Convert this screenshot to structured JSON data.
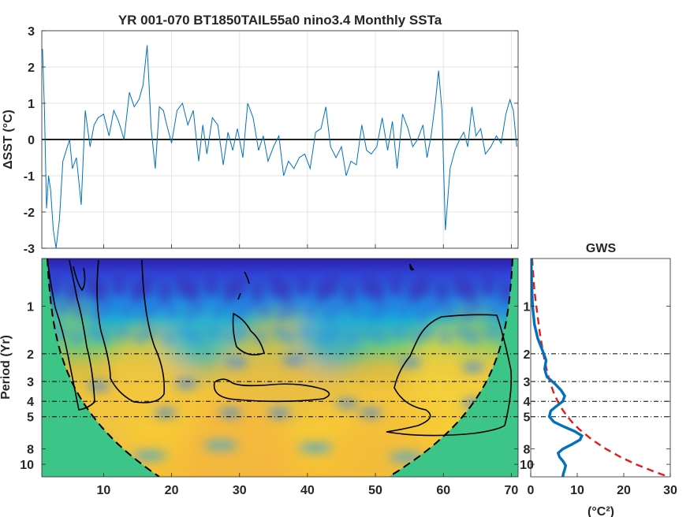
{
  "title": "YR 001-070 BT1850TAIL55a0 nino3.4 Monthly SSTa",
  "chart_data": [
    {
      "type": "line",
      "title": "YR 001-070 BT1850TAIL55a0 nino3.4 Monthly SSTa",
      "xlabel": "",
      "ylabel": "ΔSST (°C)",
      "xlim": [
        0.9,
        71
      ],
      "ylim": [
        -3,
        3
      ],
      "yticks": [
        -3,
        -2,
        -1,
        0,
        1,
        2,
        3
      ],
      "grid": true,
      "line_color": "#0072bd",
      "zero_line_color": "#000000",
      "x": [
        1.0,
        1.3,
        1.6,
        1.9,
        2.2,
        2.6,
        3.0,
        3.5,
        4.0,
        4.5,
        5.0,
        5.4,
        6.0,
        6.7,
        7.3,
        8.0,
        8.6,
        9.2,
        10.0,
        10.8,
        11.5,
        12.2,
        13.0,
        13.8,
        14.5,
        15.2,
        15.8,
        16.4,
        17.0,
        17.6,
        18.2,
        18.8,
        19.3,
        20.0,
        20.8,
        21.6,
        22.4,
        23.2,
        24.0,
        24.6,
        25.2,
        26.0,
        26.8,
        27.6,
        28.3,
        29.0,
        29.7,
        30.5,
        31.2,
        32.0,
        32.8,
        33.5,
        34.2,
        35.0,
        35.8,
        36.5,
        37.2,
        38.0,
        38.8,
        39.6,
        40.4,
        41.2,
        42.0,
        42.7,
        43.4,
        44.2,
        45.0,
        45.7,
        46.4,
        47.2,
        48.0,
        48.7,
        49.4,
        50.2,
        51.0,
        51.8,
        52.5,
        53.2,
        54.0,
        54.8,
        55.5,
        56.2,
        57.0,
        57.6,
        58.2,
        58.8,
        59.3,
        59.8,
        60.3,
        61.0,
        61.7,
        62.4,
        63.0,
        63.6,
        64.2,
        64.8,
        65.5,
        66.2,
        67.0,
        67.8,
        68.5,
        69.2,
        69.8,
        70.3,
        70.8
      ],
      "y": [
        2.5,
        0.8,
        -1.9,
        -1.0,
        -1.4,
        -2.5,
        -3.0,
        -2.2,
        -0.6,
        -0.3,
        0.0,
        -0.8,
        -0.5,
        -1.8,
        0.8,
        -0.2,
        0.4,
        0.6,
        0.7,
        0.1,
        0.8,
        0.5,
        0.0,
        1.3,
        0.9,
        1.1,
        1.5,
        2.6,
        0.3,
        -0.8,
        0.9,
        0.8,
        0.4,
        -0.1,
        0.8,
        1.0,
        0.4,
        0.8,
        -0.6,
        0.4,
        -0.4,
        0.6,
        0.4,
        -0.7,
        0.2,
        -0.3,
        0.3,
        -0.5,
        1.0,
        0.6,
        -0.3,
        0.1,
        -0.6,
        -0.2,
        0.1,
        -1.0,
        -0.6,
        -0.8,
        -0.5,
        -0.4,
        -0.8,
        0.2,
        0.3,
        0.9,
        -0.2,
        -0.5,
        -0.2,
        -1.0,
        -0.6,
        -0.7,
        0.4,
        -0.3,
        -0.4,
        -0.2,
        0.6,
        -0.3,
        0.5,
        -0.8,
        0.7,
        0.3,
        -0.2,
        0.0,
        0.4,
        -0.5,
        0.1,
        1.0,
        1.9,
        0.8,
        -2.5,
        -0.8,
        -0.3,
        0.0,
        0.2,
        -0.2,
        0.9,
        0.1,
        0.3,
        -0.4,
        -0.2,
        0.1,
        -0.1,
        0.7,
        1.1,
        0.8,
        -0.2
      ]
    },
    {
      "type": "heatmap",
      "title": "",
      "xlabel": "",
      "ylabel": "Period (Yr)",
      "xlim": [
        0.9,
        71
      ],
      "xticks": [
        10,
        20,
        30,
        40,
        50,
        60,
        70
      ],
      "y_scale": "log2",
      "ylim": [
        0.5,
        12
      ],
      "yticks": [
        1,
        2,
        3,
        4,
        5,
        8,
        10
      ],
      "colormap": "parula",
      "dashed_periods": [
        2,
        3,
        4,
        5
      ],
      "cone_color": "#3cc586",
      "contour_color": "#000000"
    },
    {
      "type": "line",
      "title": "GWS",
      "xlabel": "(°C²)",
      "ylabel": "",
      "xlim": [
        0,
        30
      ],
      "xticks": [
        0,
        10,
        20,
        30
      ],
      "y_scale": "log2",
      "ylim": [
        0.5,
        12
      ],
      "yticks": [
        1,
        2,
        3,
        4,
        5,
        8,
        10
      ],
      "series": [
        {
          "color": "#0072bd",
          "style": "solid",
          "period": [
            0.5,
            0.7,
            1.0,
            1.3,
            1.6,
            1.9,
            2.2,
            2.5,
            2.8,
            3.1,
            3.4,
            3.7,
            4.0,
            4.3,
            4.6,
            5.0,
            5.4,
            5.8,
            6.2,
            6.6,
            7.0,
            7.5,
            8.0,
            8.5,
            9.0,
            9.6,
            10.2,
            10.8,
            11.5,
            12.0
          ],
          "power": [
            0.1,
            0.2,
            0.4,
            0.8,
            1.5,
            2.5,
            3.3,
            3.0,
            3.5,
            5.2,
            6.5,
            7.3,
            6.9,
            5.5,
            4.3,
            4.0,
            5.0,
            7.2,
            9.5,
            11.0,
            10.6,
            8.8,
            6.9,
            5.9,
            6.2,
            7.0,
            7.5,
            7.3,
            7.0,
            6.9
          ]
        },
        {
          "color": "#e41a1c",
          "style": "dashed",
          "period": [
            0.5,
            0.8,
            1.0,
            1.5,
            2.0,
            2.5,
            3.0,
            3.5,
            4.0,
            4.5,
            5.0,
            5.5,
            6.0,
            7.0,
            8.0,
            9.0,
            10.0,
            11.0,
            12.0
          ],
          "power": [
            0.3,
            0.8,
            1.2,
            2.0,
            2.7,
            3.4,
            4.1,
            4.9,
            5.8,
            6.8,
            7.9,
            9.1,
            10.4,
            13.2,
            16.2,
            19.3,
            22.6,
            26.1,
            29.6
          ]
        }
      ]
    }
  ]
}
